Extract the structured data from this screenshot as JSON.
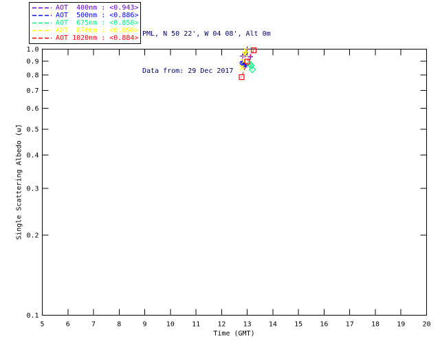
{
  "header": {
    "site_line": "PML, N 50 22', W 04 08', Alt 0m",
    "date_line": "Data from: 29 Dec 2017",
    "text_color": "#000066"
  },
  "chart_data": {
    "type": "scatter",
    "title": "",
    "xlabel": "Time (GMT)",
    "ylabel": "Single Scattering Albedo (ω̃)",
    "xlim": [
      5,
      20
    ],
    "ylim": [
      0.1,
      1.0
    ],
    "yscale": "log",
    "grid": false,
    "legend_position": "top-left",
    "xticks": [
      5,
      6,
      7,
      8,
      9,
      10,
      11,
      12,
      13,
      14,
      15,
      16,
      17,
      18,
      19,
      20
    ],
    "xtick_labels": [
      "5",
      "6",
      "7",
      "8",
      "9",
      "10",
      "11",
      "12",
      "13",
      "14",
      "15",
      "16",
      "17",
      "18",
      "19",
      "20"
    ],
    "yticks": [
      1.0,
      0.9,
      0.8,
      0.7,
      0.6,
      0.5,
      0.4,
      0.3,
      0.2,
      0.1
    ],
    "ytick_labels": [
      "1.0",
      "0.9",
      "0.8",
      "0.7",
      "0.6",
      "0.5",
      "0.4",
      "0.3",
      "0.2",
      "0.1"
    ],
    "axis_color": "#000000",
    "series": [
      {
        "label": "AOT  400nm : <0.943>",
        "wavelength_nm": 400,
        "mean_ssa": 0.943,
        "color": "#6600CC",
        "marker": "plus",
        "line_style": "dashed",
        "points": [
          [
            13.0,
            1.0
          ],
          [
            12.9,
            0.952
          ],
          [
            12.82,
            0.942
          ],
          [
            13.12,
            0.936
          ]
        ]
      },
      {
        "label": "AOT  500nm : <0.886>",
        "wavelength_nm": 500,
        "mean_ssa": 0.886,
        "color": "#0000FF",
        "marker": "asterisk",
        "line_style": "dashed",
        "points": [
          [
            12.8,
            0.888
          ],
          [
            12.86,
            0.878
          ],
          [
            12.92,
            0.868
          ]
        ]
      },
      {
        "label": "AOT  675nm : <0.858>",
        "wavelength_nm": 675,
        "mean_ssa": 0.858,
        "color": "#00F080",
        "marker": "diamond",
        "line_style": "dashed",
        "points": [
          [
            13.1,
            0.88
          ],
          [
            13.15,
            0.868
          ],
          [
            13.2,
            0.838
          ]
        ]
      },
      {
        "label": "AOT  870nm : <0.898>",
        "wavelength_nm": 870,
        "mean_ssa": 0.898,
        "color": "#FFFF00",
        "marker": "x",
        "line_style": "dashed",
        "points": [
          [
            12.95,
            0.99
          ],
          [
            12.9,
            0.958
          ],
          [
            12.87,
            0.9
          ],
          [
            12.8,
            0.852
          ]
        ]
      },
      {
        "label": "AOT 1020nm : <0.884>",
        "wavelength_nm": 1020,
        "mean_ssa": 0.884,
        "color": "#FF0000",
        "marker": "square",
        "line_style": "dashed",
        "points": [
          [
            13.25,
            0.99
          ],
          [
            13.0,
            0.898
          ],
          [
            12.78,
            0.785
          ]
        ]
      }
    ]
  }
}
